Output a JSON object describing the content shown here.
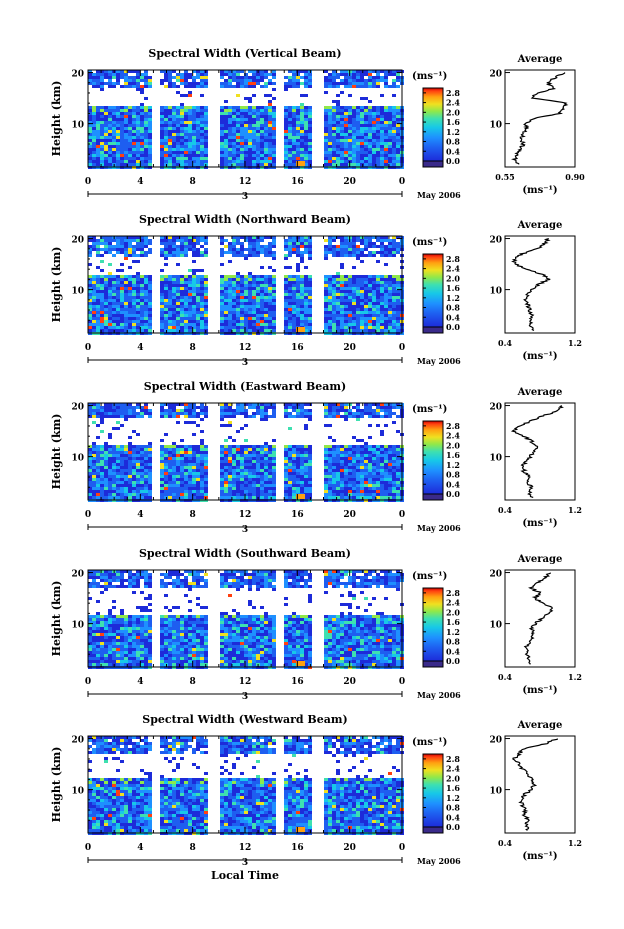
{
  "figure": {
    "ylabel": "Height (km)",
    "xlabel": "Local Time",
    "month": "May 2006",
    "day": "3",
    "units": "(ms⁻¹)",
    "avg_title": "Average",
    "avg_xlabel": "(ms⁻¹)"
  },
  "colorbar": {
    "ticks": [
      "0.0",
      "0.4",
      "0.8",
      "1.2",
      "1.6",
      "2.0",
      "2.4",
      "2.8"
    ],
    "colors": [
      "#3a2a8a",
      "#1d2bd9",
      "#1e5ef0",
      "#1e90ff",
      "#17c8e8",
      "#3ee0b0",
      "#90e84a",
      "#f0e020",
      "#ffa010",
      "#ff4010",
      "#d00000"
    ]
  },
  "chart_data": [
    {
      "type": "heatmap",
      "title": "Spectral Width (Vertical Beam)",
      "x_ticks": [
        "0",
        "4",
        "8",
        "12",
        "16",
        "20",
        "0"
      ],
      "xlim": [
        0,
        24
      ],
      "ylim": [
        1.5,
        20.5
      ],
      "y_ticks": [
        "20",
        "10"
      ],
      "gaps_hours": [
        [
          4.8,
          5.4
        ],
        [
          9.3,
          10.1
        ],
        [
          14.3,
          14.9
        ],
        [
          17.2,
          17.9
        ]
      ],
      "blank_band_km": [
        13.6,
        17.2
      ],
      "average_profile": {
        "xlim": [
          0.55,
          0.9
        ],
        "x_ticks": [
          "0.55",
          "0.90"
        ],
        "y_ticks": [
          "20",
          "10"
        ],
        "height_km": [
          2,
          3,
          4,
          5,
          6,
          7,
          8,
          9,
          10,
          11,
          12,
          13,
          14,
          15,
          16,
          17,
          18,
          19,
          20
        ],
        "values": [
          0.62,
          0.6,
          0.61,
          0.63,
          0.64,
          0.63,
          0.64,
          0.66,
          0.65,
          0.7,
          0.82,
          0.84,
          0.86,
          0.68,
          0.72,
          0.8,
          0.76,
          0.8,
          0.85
        ]
      }
    },
    {
      "type": "heatmap",
      "title": "Spectral Width (Northward Beam)",
      "x_ticks": [
        "0",
        "4",
        "8",
        "12",
        "16",
        "20",
        "0"
      ],
      "xlim": [
        0,
        24
      ],
      "ylim": [
        1.5,
        20.5
      ],
      "y_ticks": [
        "20",
        "10"
      ],
      "gaps_hours": [
        [
          4.8,
          5.4
        ],
        [
          9.3,
          10.1
        ],
        [
          14.3,
          14.9
        ],
        [
          17.2,
          17.9
        ]
      ],
      "blank_band_km": [
        13.0,
        16.2
      ],
      "average_profile": {
        "xlim": [
          0.4,
          1.2
        ],
        "x_ticks": [
          "0.4",
          "1.2"
        ],
        "y_ticks": [
          "20",
          "10"
        ],
        "height_km": [
          2,
          3,
          4,
          5,
          6,
          7,
          8,
          9,
          10,
          11,
          12,
          13,
          14,
          15,
          16,
          17,
          18,
          19,
          20
        ],
        "values": [
          0.72,
          0.68,
          0.7,
          0.7,
          0.68,
          0.66,
          0.64,
          0.66,
          0.7,
          0.78,
          0.9,
          0.82,
          0.66,
          0.52,
          0.5,
          0.6,
          0.78,
          0.85,
          0.9
        ]
      }
    },
    {
      "type": "heatmap",
      "title": "Spectral Width (Eastward Beam)",
      "x_ticks": [
        "0",
        "4",
        "8",
        "12",
        "16",
        "20",
        "0"
      ],
      "xlim": [
        0,
        24
      ],
      "ylim": [
        1.5,
        20.5
      ],
      "y_ticks": [
        "20",
        "10"
      ],
      "gaps_hours": [
        [
          4.8,
          5.4
        ],
        [
          9.3,
          10.1
        ],
        [
          14.3,
          14.9
        ],
        [
          17.2,
          17.9
        ]
      ],
      "blank_band_km": [
        12.8,
        17.6
      ],
      "average_profile": {
        "xlim": [
          0.4,
          1.2
        ],
        "x_ticks": [
          "0.4",
          "1.2"
        ],
        "y_ticks": [
          "20",
          "10"
        ],
        "height_km": [
          2,
          3,
          4,
          5,
          6,
          7,
          8,
          9,
          10,
          11,
          12,
          13,
          14,
          15,
          16,
          17,
          18,
          19,
          20
        ],
        "values": [
          0.7,
          0.68,
          0.7,
          0.66,
          0.68,
          0.62,
          0.6,
          0.64,
          0.7,
          0.72,
          0.76,
          0.7,
          0.62,
          0.5,
          0.56,
          0.7,
          0.84,
          1.0,
          1.05
        ]
      }
    },
    {
      "type": "heatmap",
      "title": "Spectral Width (Southward Beam)",
      "x_ticks": [
        "0",
        "4",
        "8",
        "12",
        "16",
        "20",
        "0"
      ],
      "xlim": [
        0,
        24
      ],
      "ylim": [
        1.5,
        20.5
      ],
      "y_ticks": [
        "20",
        "10"
      ],
      "gaps_hours": [
        [
          4.8,
          5.4
        ],
        [
          9.3,
          10.1
        ],
        [
          14.3,
          14.9
        ],
        [
          17.2,
          17.9
        ]
      ],
      "blank_band_km": [
        12.2,
        17.2
      ],
      "average_profile": {
        "xlim": [
          0.4,
          1.2
        ],
        "x_ticks": [
          "0.4",
          "1.2"
        ],
        "y_ticks": [
          "20",
          "10"
        ],
        "height_km": [
          2,
          3,
          4,
          5,
          6,
          7,
          8,
          9,
          10,
          11,
          12,
          13,
          14,
          15,
          16,
          17,
          18,
          19,
          20
        ],
        "values": [
          0.7,
          0.68,
          0.66,
          0.64,
          0.66,
          0.7,
          0.72,
          0.7,
          0.74,
          0.82,
          0.9,
          0.95,
          0.82,
          0.74,
          0.8,
          0.7,
          0.78,
          0.86,
          0.92
        ]
      }
    },
    {
      "type": "heatmap",
      "title": "Spectral Width (Westward Beam)",
      "x_ticks": [
        "0",
        "4",
        "8",
        "12",
        "16",
        "20",
        "0"
      ],
      "xlim": [
        0,
        24
      ],
      "ylim": [
        1.5,
        20.5
      ],
      "y_ticks": [
        "20",
        "10"
      ],
      "gaps_hours": [
        [
          4.8,
          5.4
        ],
        [
          9.3,
          10.1
        ],
        [
          14.3,
          14.9
        ],
        [
          17.2,
          17.9
        ]
      ],
      "blank_band_km": [
        12.6,
        16.8
      ],
      "average_profile": {
        "xlim": [
          0.4,
          1.2
        ],
        "x_ticks": [
          "0.4",
          "1.2"
        ],
        "y_ticks": [
          "20",
          "10"
        ],
        "height_km": [
          2,
          3,
          4,
          5,
          6,
          7,
          8,
          9,
          10,
          11,
          12,
          13,
          14,
          15,
          16,
          17,
          18,
          19,
          20
        ],
        "values": [
          0.66,
          0.64,
          0.66,
          0.62,
          0.64,
          0.6,
          0.58,
          0.62,
          0.7,
          0.74,
          0.72,
          0.66,
          0.6,
          0.56,
          0.5,
          0.56,
          0.62,
          0.86,
          1.0
        ]
      }
    }
  ]
}
